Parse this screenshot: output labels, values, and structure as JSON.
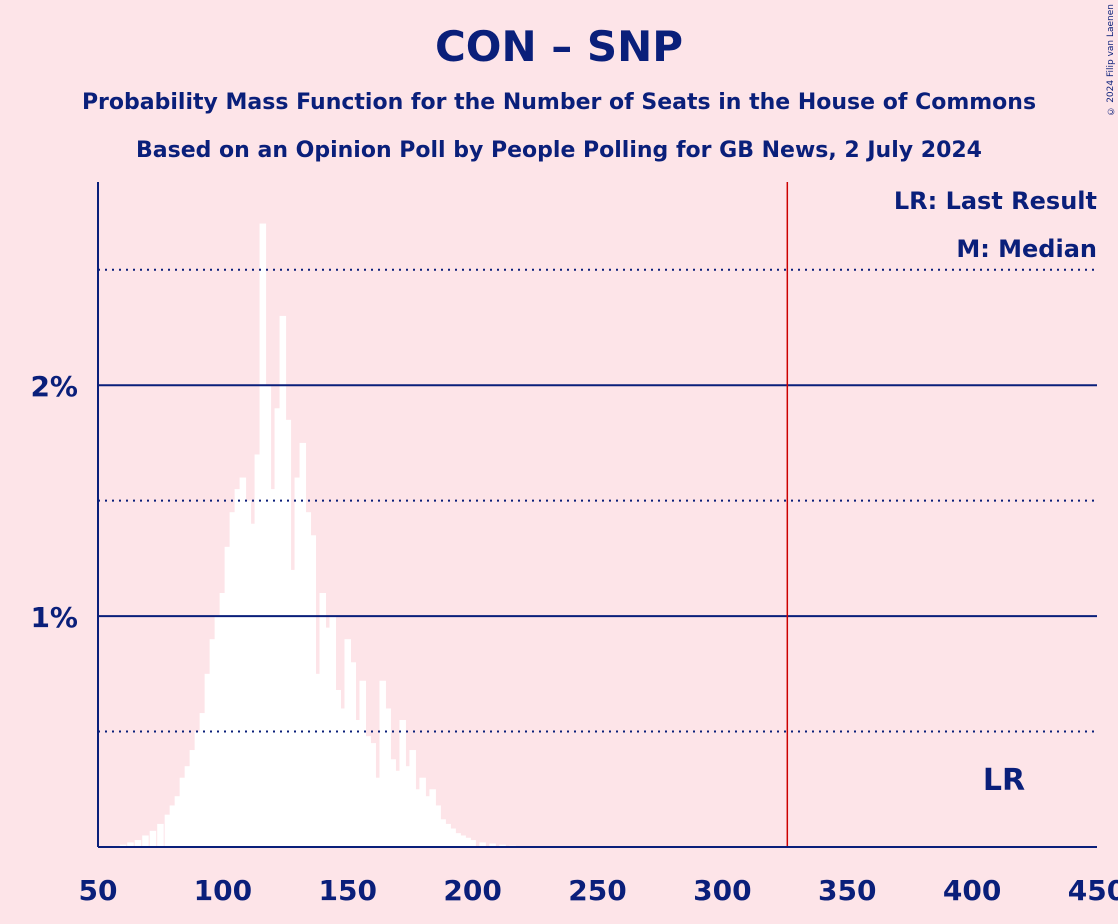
{
  "header": {
    "title": "CON – SNP",
    "subtitle": "Probability Mass Function for the Number of Seats in the House of Commons",
    "source": "Based on an Opinion Poll by People Polling for GB News, 2 July 2024",
    "copyright": "© 2024 Filip van Laenen"
  },
  "legend": {
    "last_result": "LR: Last Result",
    "median": "M: Median"
  },
  "colors": {
    "background": "#fde4e8",
    "axis": "#0a1f7a",
    "bars": "#ffffff",
    "last_result_line": "#cc0000"
  },
  "chart_data": {
    "type": "bar",
    "title": "CON – SNP",
    "xlabel": "",
    "ylabel": "",
    "xlim": [
      50,
      450
    ],
    "ylim": [
      0,
      2.88
    ],
    "x_ticks": [
      50,
      100,
      150,
      200,
      250,
      300,
      350,
      400,
      450
    ],
    "x_tick_labels": [
      "50",
      "100",
      "150",
      "200",
      "250",
      "300",
      "350",
      "400",
      "450"
    ],
    "y_major_ticks": [
      1,
      2
    ],
    "y_tick_labels": [
      "1%",
      "2%"
    ],
    "y_minor_gridlines": [
      0.5,
      1.5,
      2.5
    ],
    "last_result": 326,
    "last_result_label": "LR",
    "series": [
      {
        "x": [
          57,
          60,
          63,
          66,
          69,
          72,
          75,
          78,
          80,
          82,
          84,
          86,
          88,
          90,
          92,
          94,
          96,
          98,
          100,
          102,
          104,
          106,
          108,
          110,
          112,
          114,
          116,
          118,
          120,
          122,
          124,
          126,
          128,
          130,
          132,
          134,
          136,
          138,
          140,
          142,
          144,
          146,
          148,
          150,
          152,
          154,
          156,
          158,
          160,
          162,
          164,
          166,
          168,
          170,
          172,
          174,
          176,
          178,
          180,
          182,
          184,
          186,
          188,
          190,
          192,
          194,
          196,
          198,
          200,
          204,
          208,
          212,
          216,
          220,
          225
        ],
        "values": [
          0.005,
          0.01,
          0.02,
          0.03,
          0.05,
          0.07,
          0.1,
          0.14,
          0.18,
          0.22,
          0.3,
          0.35,
          0.42,
          0.5,
          0.58,
          0.75,
          0.9,
          1.0,
          1.1,
          1.3,
          1.45,
          1.55,
          1.6,
          1.5,
          1.4,
          1.7,
          2.7,
          2.0,
          1.55,
          1.9,
          2.3,
          1.85,
          1.2,
          1.6,
          1.75,
          1.45,
          1.35,
          0.75,
          1.1,
          0.95,
          1.0,
          0.68,
          0.6,
          0.9,
          0.8,
          0.55,
          0.72,
          0.48,
          0.45,
          0.3,
          0.72,
          0.6,
          0.38,
          0.33,
          0.55,
          0.35,
          0.42,
          0.25,
          0.3,
          0.22,
          0.25,
          0.18,
          0.12,
          0.1,
          0.08,
          0.06,
          0.05,
          0.04,
          0.03,
          0.02,
          0.015,
          0.01,
          0.006,
          0.004,
          0.002
        ]
      }
    ]
  }
}
